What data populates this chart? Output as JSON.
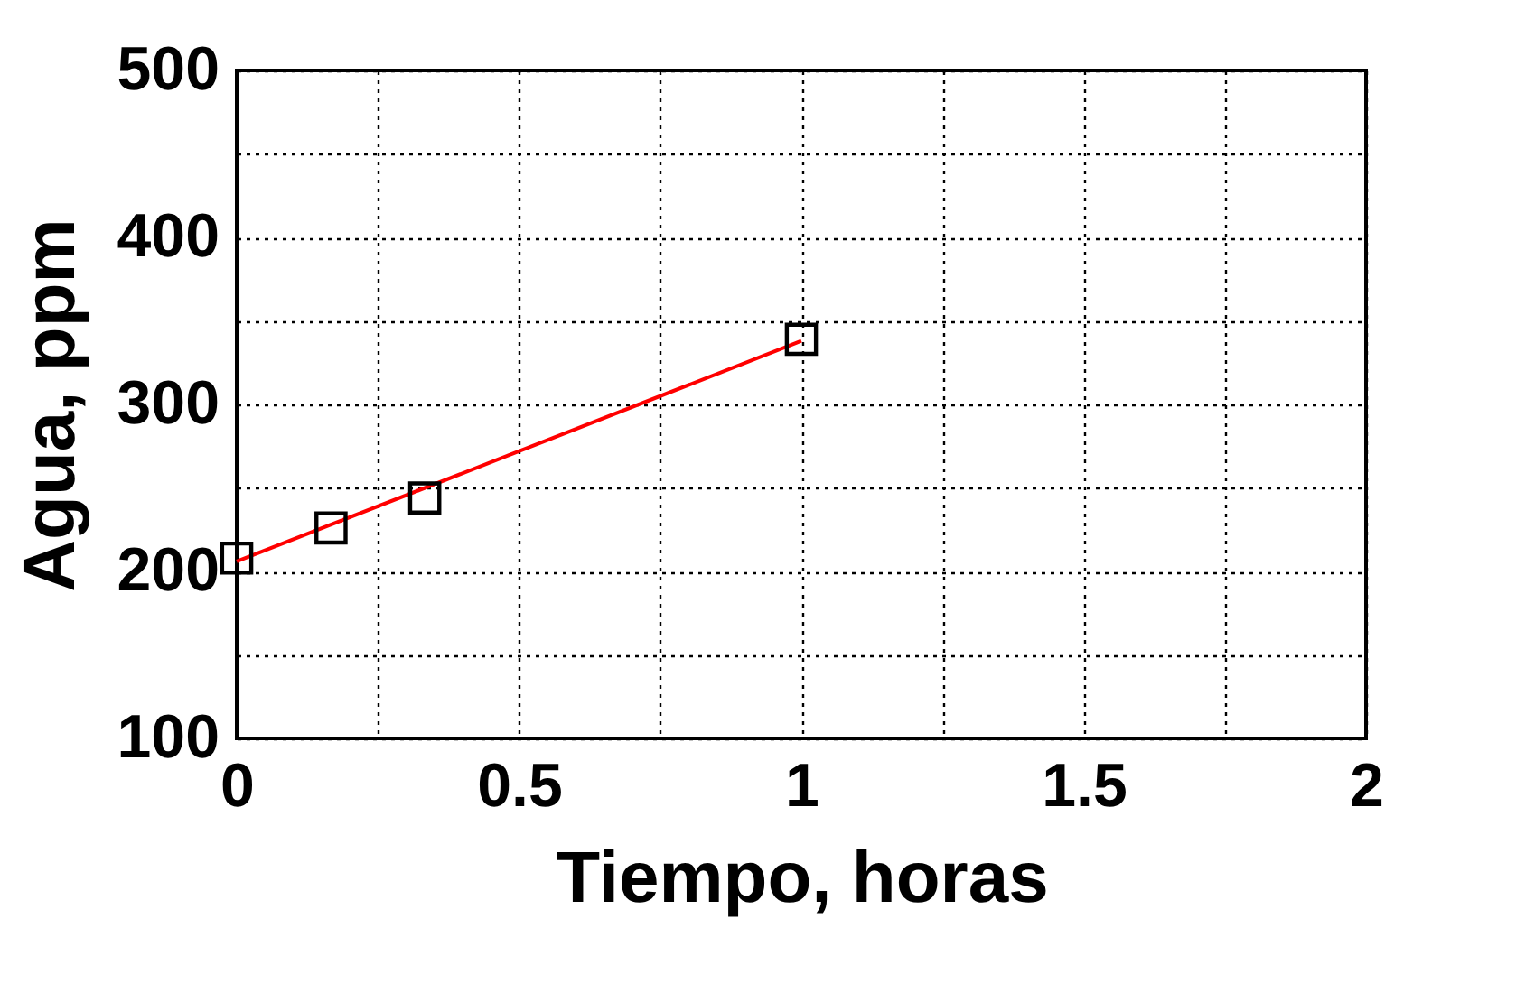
{
  "chart_data": {
    "type": "scatter",
    "xlabel": "Tiempo, horas",
    "ylabel": "Agua, ppm",
    "series": [
      {
        "type": "scatter",
        "color": "#000000",
        "x": [
          0,
          0.167,
          0.333,
          1
        ],
        "values": [
          208,
          226,
          244,
          339
        ],
        "marker": "square"
      },
      {
        "type": "line",
        "color": "#ff0000",
        "x": [
          0,
          1
        ],
        "values": [
          206,
          338
        ],
        "marker": "none",
        "line_style": "solid"
      }
    ],
    "xlim": [
      0,
      2
    ],
    "ylim": [
      100,
      500
    ],
    "xticks": [
      0,
      {
        "value": 0.25,
        "label": null
      },
      0.5,
      {
        "value": 0.75,
        "label": null
      },
      1,
      {
        "value": 1.25,
        "label": null
      },
      1.5,
      {
        "value": 1.75,
        "label": null
      },
      2
    ],
    "yticks": [
      100,
      {
        "value": 150,
        "label": null
      },
      200,
      {
        "value": 250,
        "label": null
      },
      300,
      {
        "value": 350,
        "label": null
      },
      400,
      {
        "value": 450,
        "label": null
      },
      500
    ],
    "grid": true
  }
}
